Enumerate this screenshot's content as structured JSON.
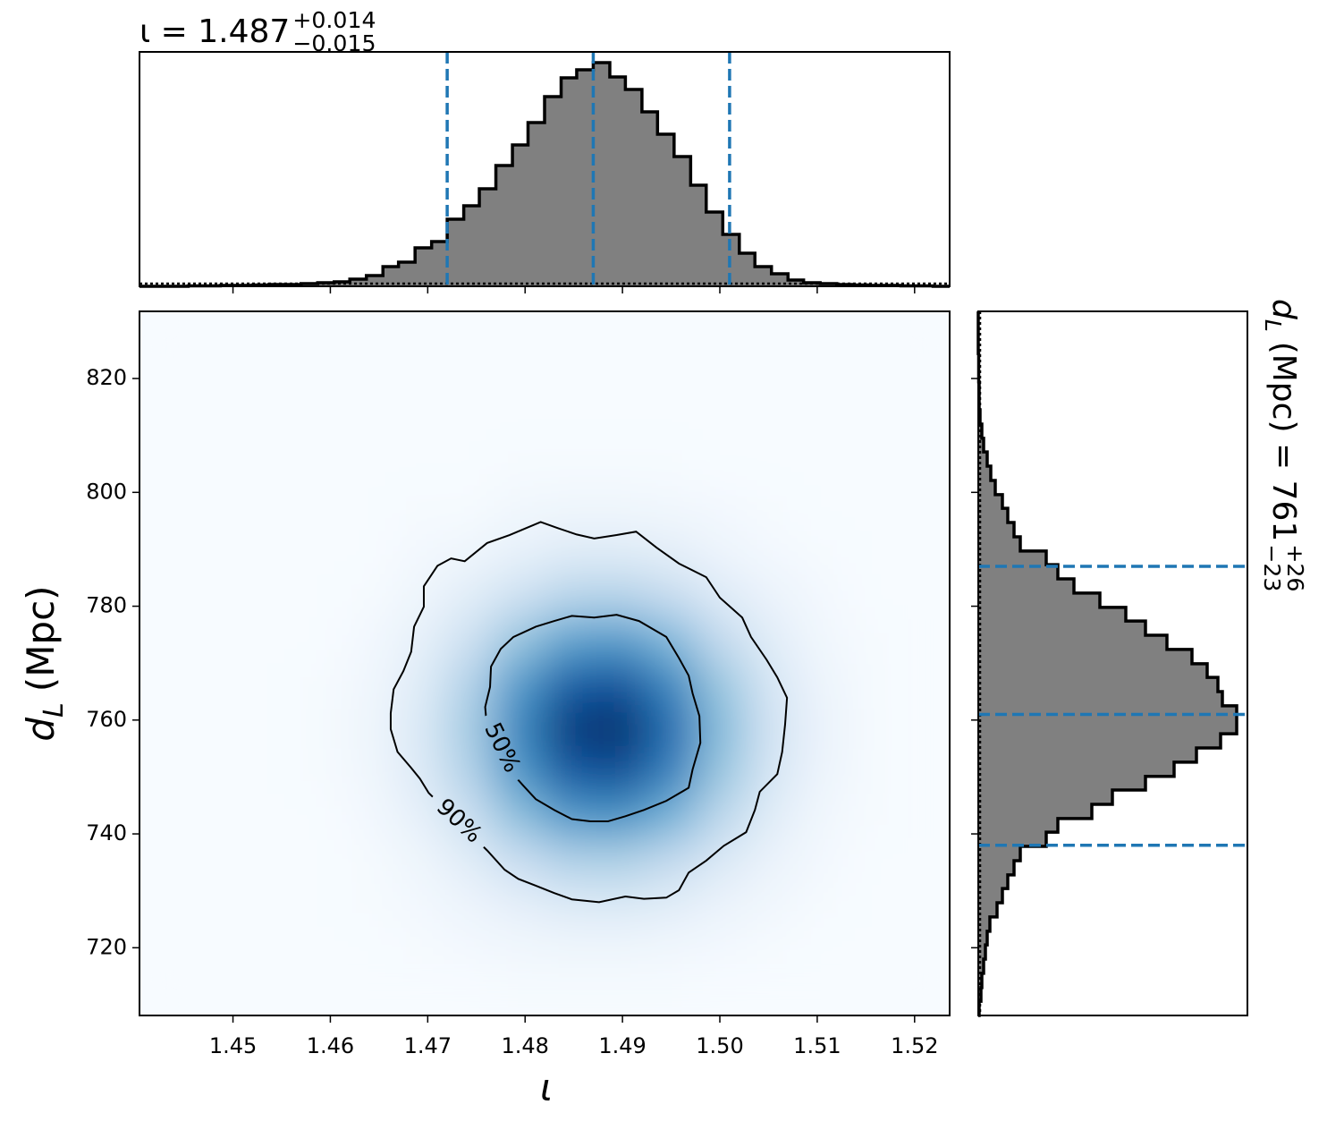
{
  "chart_data": [
    {
      "type": "histogram",
      "orientation": "vertical",
      "title": {
        "text": "ι = 1.487",
        "sup": "+0.014",
        "sub": "−0.015"
      },
      "bins": [
        1.4404,
        1.4421,
        1.4437,
        1.4454,
        1.4471,
        1.4487,
        1.4504,
        1.452,
        1.4537,
        1.4554,
        1.457,
        1.4587,
        1.4604,
        1.462,
        1.4637,
        1.4654,
        1.467,
        1.4687,
        1.4704,
        1.472,
        1.4737,
        1.4753,
        1.477,
        1.4787,
        1.4803,
        1.482,
        1.4837,
        1.4853,
        1.487,
        1.4887,
        1.4903,
        1.492,
        1.4936,
        1.4953,
        1.497,
        1.4986,
        1.5003,
        1.502,
        1.5036,
        1.5053,
        1.507,
        1.5086,
        1.5103,
        1.512,
        1.5136,
        1.5153,
        1.5169,
        1.5186,
        1.5203,
        1.5219,
        1.5236
      ],
      "counts": [
        0,
        0,
        0,
        0.5,
        0.5,
        1,
        1,
        1.5,
        2,
        2,
        3,
        4,
        5,
        8,
        12,
        22,
        27,
        43,
        50,
        75,
        90,
        109,
        135,
        158,
        183,
        212,
        233,
        242,
        250,
        234,
        220,
        195,
        170,
        145,
        113,
        83,
        58,
        37,
        22,
        14,
        7,
        4,
        3,
        2,
        1.5,
        1,
        1,
        0.5,
        0.5,
        0
      ],
      "color": "#808080",
      "edgecolor": "#000000",
      "xlim": [
        1.4404,
        1.5236
      ],
      "ylim": [
        0,
        262
      ],
      "xticks": [
        1.45,
        1.46,
        1.47,
        1.48,
        1.49,
        1.5,
        1.51,
        1.52
      ],
      "quantiles": [
        1.472,
        1.487,
        1.501
      ],
      "quantile_color": "#1f77b4",
      "reference_level": 3
    },
    {
      "type": "density",
      "xlabel": "ι",
      "ylabel": {
        "symbol": "d",
        "subscript": "L",
        "unit": "(Mpc)"
      },
      "xlim": [
        1.4404,
        1.5236
      ],
      "ylim": [
        708.1,
        831.8
      ],
      "xticks": [
        1.45,
        1.46,
        1.47,
        1.48,
        1.49,
        {
          "value": 1.5,
          "label": "1.50"
        },
        1.51,
        1.52
      ],
      "yticks": [
        720,
        740,
        760,
        780,
        800,
        820
      ],
      "colormap": "Blues",
      "density": [
        [
          0,
          0,
          0,
          0,
          0,
          0,
          0,
          0,
          0,
          0,
          0,
          0,
          0,
          0,
          0,
          0
        ],
        [
          0,
          0,
          0,
          0,
          0,
          0,
          0,
          0,
          0,
          0,
          0,
          0,
          0,
          0,
          0,
          0
        ],
        [
          0,
          0,
          0,
          0,
          0,
          0,
          0,
          0,
          0,
          0,
          0,
          0,
          0,
          0,
          0,
          0
        ],
        [
          0,
          0,
          0,
          0,
          0,
          0,
          0,
          1,
          1,
          1,
          1,
          0,
          0,
          0,
          0,
          0
        ],
        [
          0,
          0,
          0,
          0,
          0,
          1,
          1,
          3,
          4,
          4,
          3,
          2,
          1,
          0,
          0,
          0
        ],
        [
          0,
          0,
          0,
          0,
          0,
          2,
          4,
          8,
          12,
          12,
          10,
          5,
          2,
          1,
          0,
          0
        ],
        [
          0,
          0,
          0,
          0,
          1,
          4,
          11,
          20,
          29,
          30,
          24,
          13,
          6,
          2,
          0,
          0
        ],
        [
          0,
          0,
          0,
          0,
          2,
          8,
          20,
          39,
          55,
          58,
          45,
          25,
          11,
          3,
          1,
          0
        ],
        [
          0,
          0,
          0,
          1,
          3,
          11,
          30,
          58,
          82,
          86,
          66,
          38,
          16,
          5,
          1,
          0
        ],
        [
          0,
          0,
          0,
          1,
          4,
          13,
          34,
          66,
          94,
          98,
          76,
          43,
          18,
          6,
          1,
          0
        ],
        [
          0,
          0,
          0,
          1,
          3,
          12,
          30,
          59,
          83,
          87,
          68,
          38,
          16,
          5,
          1,
          0
        ],
        [
          0,
          0,
          0,
          0,
          2,
          8,
          21,
          41,
          58,
          61,
          47,
          27,
          11,
          3,
          1,
          0
        ],
        [
          0,
          0,
          0,
          0,
          1,
          4,
          11,
          22,
          31,
          32,
          25,
          14,
          6,
          2,
          0,
          0
        ],
        [
          0,
          0,
          0,
          0,
          1,
          2,
          5,
          9,
          13,
          14,
          11,
          6,
          3,
          1,
          0,
          0
        ],
        [
          0,
          0,
          0,
          0,
          0,
          1,
          2,
          3,
          4,
          4,
          3,
          2,
          1,
          0,
          0,
          0
        ],
        [
          0,
          0,
          0,
          0,
          0,
          0,
          0,
          1,
          1,
          1,
          1,
          0,
          0,
          0,
          0,
          0
        ]
      ],
      "contour_color": "#000000",
      "contours": [
        {
          "label": "50%",
          "points": [
            [
              1.4764,
              765.8
            ],
            [
              1.4765,
              769.4
            ],
            [
              1.4775,
              772.5
            ],
            [
              1.4788,
              774.6
            ],
            [
              1.4811,
              776.4
            ],
            [
              1.483,
              777.4
            ],
            [
              1.4848,
              778.3
            ],
            [
              1.4871,
              778.0
            ],
            [
              1.4894,
              778.5
            ],
            [
              1.4917,
              777.4
            ],
            [
              1.4945,
              774.6
            ],
            [
              1.4958,
              770.9
            ],
            [
              1.4968,
              767.8
            ],
            [
              1.4972,
              764.7
            ],
            [
              1.4979,
              760.7
            ],
            [
              1.498,
              756.0
            ],
            [
              1.4972,
              751.3
            ],
            [
              1.4968,
              748.1
            ],
            [
              1.4945,
              745.8
            ],
            [
              1.4922,
              744.2
            ],
            [
              1.4903,
              743.1
            ],
            [
              1.4885,
              742.2
            ],
            [
              1.4867,
              742.2
            ],
            [
              1.4848,
              742.6
            ],
            [
              1.483,
              744.2
            ],
            [
              1.4811,
              746.1
            ],
            [
              1.4798,
              748.5
            ],
            [
              1.4775,
              752.9
            ],
            [
              1.4761,
              758.4
            ],
            [
              1.4759,
              762.3
            ]
          ]
        },
        {
          "label": "90%",
          "points": [
            [
              1.4662,
              761.2
            ],
            [
              1.4665,
              765.4
            ],
            [
              1.4675,
              768.6
            ],
            [
              1.4683,
              772.0
            ],
            [
              1.4686,
              776.4
            ],
            [
              1.4696,
              779.9
            ],
            [
              1.4696,
              783.5
            ],
            [
              1.471,
              787.1
            ],
            [
              1.4724,
              788.4
            ],
            [
              1.4738,
              787.9
            ],
            [
              1.4761,
              791.1
            ],
            [
              1.4784,
              792.5
            ],
            [
              1.4816,
              794.8
            ],
            [
              1.4834,
              793.7
            ],
            [
              1.4853,
              792.6
            ],
            [
              1.4871,
              791.9
            ],
            [
              1.4894,
              792.5
            ],
            [
              1.4914,
              793.1
            ],
            [
              1.4935,
              790.3
            ],
            [
              1.4958,
              787.5
            ],
            [
              1.4986,
              785.1
            ],
            [
              1.5,
              781.5
            ],
            [
              1.5023,
              778.0
            ],
            [
              1.5032,
              774.6
            ],
            [
              1.5048,
              770.6
            ],
            [
              1.5059,
              767.5
            ],
            [
              1.5069,
              763.9
            ],
            [
              1.5067,
              759.2
            ],
            [
              1.5064,
              754.4
            ],
            [
              1.5059,
              750.5
            ],
            [
              1.5041,
              747.4
            ],
            [
              1.5036,
              744.2
            ],
            [
              1.5027,
              740.3
            ],
            [
              1.5004,
              737.9
            ],
            [
              1.4986,
              735.3
            ],
            [
              1.4968,
              733.2
            ],
            [
              1.4958,
              730.1
            ],
            [
              1.4945,
              728.8
            ],
            [
              1.4922,
              728.6
            ],
            [
              1.4903,
              729.0
            ],
            [
              1.4876,
              728.0
            ],
            [
              1.4848,
              728.5
            ],
            [
              1.483,
              729.6
            ],
            [
              1.4811,
              730.9
            ],
            [
              1.4793,
              732.1
            ],
            [
              1.4779,
              733.7
            ],
            [
              1.4761,
              737.1
            ],
            [
              1.4701,
              747.2
            ],
            [
              1.4692,
              749.7
            ],
            [
              1.4683,
              751.6
            ],
            [
              1.4669,
              754.4
            ],
            [
              1.4662,
              758.4
            ]
          ]
        }
      ]
    },
    {
      "type": "histogram",
      "orientation": "horizontal",
      "title": {
        "symbol": "d",
        "subscript": "L",
        "text": "(Mpc) = 761",
        "sup": "+26",
        "sub": "−23"
      },
      "bins": [
        708.1,
        710.6,
        713.0,
        715.5,
        718.0,
        720.5,
        722.9,
        725.4,
        727.9,
        730.4,
        732.8,
        735.3,
        737.8,
        740.3,
        742.7,
        745.2,
        747.7,
        750.1,
        752.6,
        755.1,
        757.6,
        760.0,
        762.5,
        765.0,
        767.5,
        769.9,
        772.4,
        774.9,
        777.4,
        779.8,
        782.3,
        784.8,
        787.3,
        789.7,
        792.2,
        794.7,
        797.2,
        799.6,
        802.1,
        804.6,
        807.1,
        809.5,
        812.0,
        814.5,
        816.9,
        819.4,
        821.9,
        824.4,
        826.8,
        829.3,
        831.8
      ],
      "counts": [
        1,
        3,
        4,
        6,
        8,
        10,
        13,
        21,
        27,
        33,
        40,
        47,
        76,
        89,
        127,
        150,
        187,
        219,
        244,
        271,
        289,
        289,
        273,
        268,
        256,
        239,
        211,
        187,
        165,
        136,
        107,
        89,
        76,
        47,
        40,
        33,
        27,
        19,
        14,
        10,
        6,
        4,
        2,
        1,
        1,
        0.5,
        0.5,
        0,
        0,
        0
      ],
      "color": "#808080",
      "edgecolor": "#000000",
      "xlim": [
        0,
        301
      ],
      "ylim": [
        708.1,
        831.8
      ],
      "yticks": [
        720,
        740,
        760,
        780,
        800,
        820
      ],
      "quantiles": [
        738,
        761,
        787
      ],
      "quantile_color": "#1f77b4",
      "reference_level": 2
    }
  ]
}
